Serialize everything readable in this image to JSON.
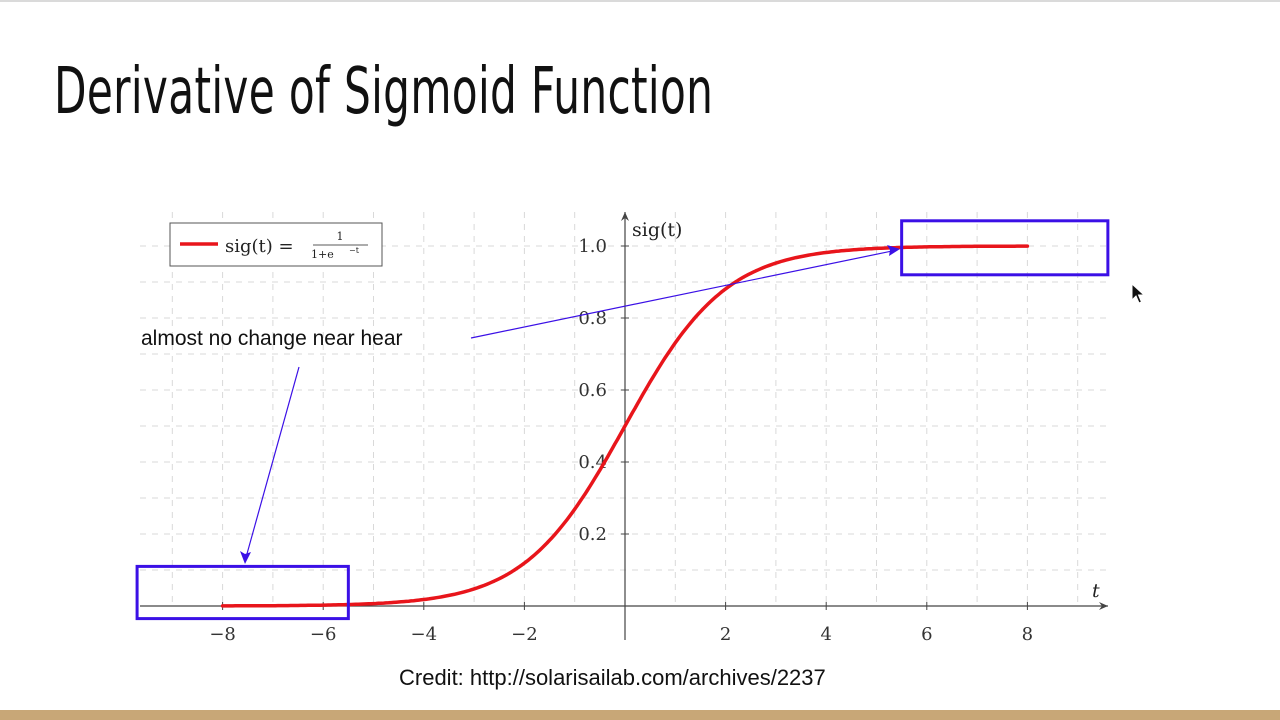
{
  "slide": {
    "title": "Derivative of Sigmoid Function",
    "annotation": "almost no change near hear",
    "credit": "Credit: http://solarisailab.com/archives/2237"
  },
  "chart_data": {
    "type": "line",
    "function": "sig(t) = 1 / (1 + e^(-t))",
    "ylabel": "sig(t)",
    "xlabel": "t",
    "xticks": [
      -8,
      -6,
      -4,
      -2,
      2,
      4,
      6,
      8
    ],
    "xtick_labels": [
      "−8",
      "−6",
      "−4",
      "−2",
      "2",
      "4",
      "6",
      "8"
    ],
    "yticks": [
      0.2,
      0.4,
      0.6,
      0.8,
      1.0
    ],
    "ytick_labels": [
      "0.2",
      "0.4",
      "0.6",
      "0.8",
      "1.0"
    ],
    "xlim": [
      -10,
      10
    ],
    "ylim": [
      0,
      1.1
    ],
    "grid": true,
    "legend": {
      "placement": "top-left",
      "label": "sig(t) =",
      "fraction_numerator": "1",
      "fraction_denominator": "1+e",
      "fraction_denominator_exponent": "−t"
    },
    "series": [
      {
        "name": "sig(t) = 1/(1+e^-t)",
        "color": "#e8151b",
        "x_range": [
          -8,
          8
        ],
        "samples": [
          {
            "x": -8,
            "y": 0.0003
          },
          {
            "x": -6,
            "y": 0.0025
          },
          {
            "x": -4,
            "y": 0.018
          },
          {
            "x": -2,
            "y": 0.119
          },
          {
            "x": 0,
            "y": 0.5
          },
          {
            "x": 2,
            "y": 0.881
          },
          {
            "x": 4,
            "y": 0.982
          },
          {
            "x": 6,
            "y": 0.9975
          },
          {
            "x": 8,
            "y": 0.9997
          }
        ]
      }
    ],
    "highlight_regions": [
      {
        "name": "left-flat-region",
        "x_range": [
          -9.7,
          -5.5
        ],
        "y_range": [
          -0.035,
          0.11
        ]
      },
      {
        "name": "right-flat-region",
        "x_range": [
          5.5,
          9.6
        ],
        "y_range": [
          0.92,
          1.07
        ]
      }
    ],
    "highlight_color": "#3b10e6"
  }
}
